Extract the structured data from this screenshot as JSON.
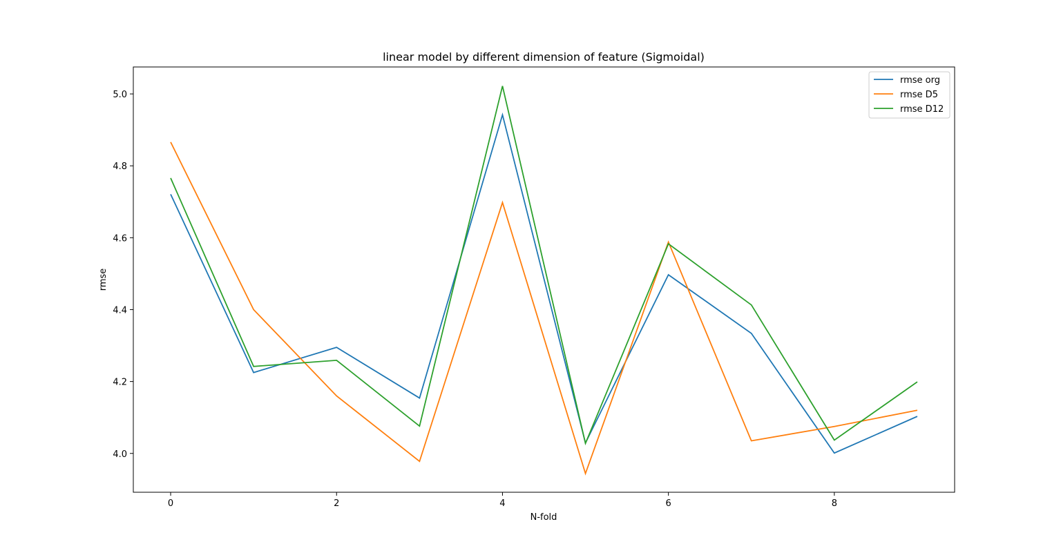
{
  "chart_data": {
    "type": "line",
    "title": "linear model by different dimension of feature (Sigmoidal)",
    "xlabel": "N-fold",
    "ylabel": "rmse",
    "x": [
      0,
      1,
      2,
      3,
      4,
      5,
      6,
      7,
      8,
      9
    ],
    "xlim": [
      -0.45,
      9.45
    ],
    "ylim": [
      3.892,
      5.075
    ],
    "xticks": [
      0,
      2,
      4,
      6,
      8
    ],
    "yticks": [
      4.0,
      4.2,
      4.4,
      4.6,
      4.8,
      5.0
    ],
    "xtick_labels": [
      "0",
      "2",
      "4",
      "6",
      "8"
    ],
    "ytick_labels": [
      "4.0",
      "4.2",
      "4.4",
      "4.6",
      "4.8",
      "5.0"
    ],
    "grid": false,
    "legend_position": "top-right",
    "series": [
      {
        "name": "rmse org",
        "color": "#1f77b4",
        "values": [
          4.721,
          4.225,
          4.295,
          4.154,
          4.942,
          4.029,
          4.497,
          4.334,
          4.001,
          4.103
        ]
      },
      {
        "name": "rmse D5",
        "color": "#ff7f0e",
        "values": [
          4.866,
          4.4,
          4.16,
          3.978,
          4.698,
          3.944,
          4.588,
          4.035,
          4.075,
          4.12
        ]
      },
      {
        "name": "rmse D12",
        "color": "#2ca02c",
        "values": [
          4.766,
          4.242,
          4.259,
          4.076,
          5.022,
          4.028,
          4.583,
          4.413,
          4.037,
          4.199
        ]
      }
    ]
  }
}
